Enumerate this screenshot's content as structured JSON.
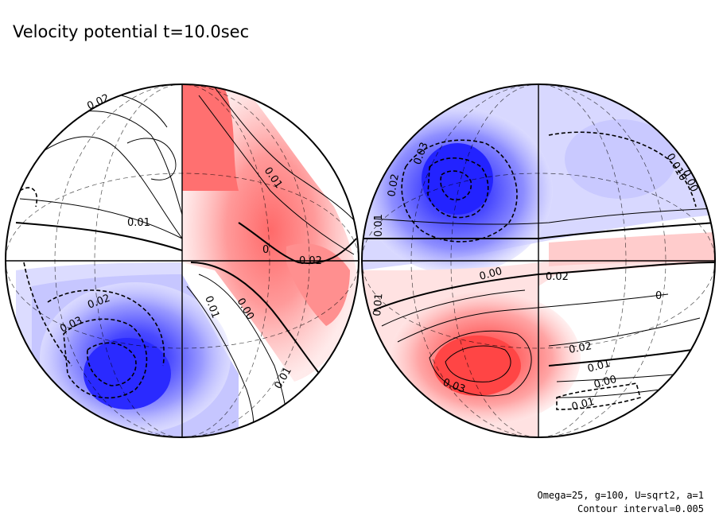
{
  "title": "Velocity potential t=10.0sec",
  "notes": {
    "params": "Omega=25, g=100, U=sqrt2, a=1",
    "interval": "Contour interval=0.005"
  },
  "colors": {
    "negative_max": "#1a1aff",
    "positive_max": "#ff3c3c",
    "contour": "#000000"
  },
  "chart_data": {
    "type": "heatmap",
    "projection": "orthographic, two hemispheres",
    "variable": "velocity potential",
    "time_sec": 10.0,
    "contour_interval": 0.005,
    "value_range": [
      -0.035,
      0.035
    ],
    "hemispheres": [
      {
        "name": "left",
        "contour_labels": [
          "0.02",
          "0.01",
          "0.01",
          "0",
          "0.02",
          "0.02",
          "0.03",
          "0.01",
          "0.00",
          "0.01"
        ],
        "features": [
          {
            "kind": "minimum",
            "approx_value": -0.035
          },
          {
            "kind": "maximum",
            "approx_value": 0.025
          }
        ]
      },
      {
        "name": "right",
        "contour_labels": [
          "0.03",
          "0.02",
          "0.01",
          "0.010",
          "0.00",
          "0.00",
          "0.02",
          "0.01",
          "0.02",
          "0.01",
          "0.00",
          "0.01",
          "0.03",
          "0"
        ],
        "features": [
          {
            "kind": "minimum",
            "approx_value": -0.035
          },
          {
            "kind": "maximum",
            "approx_value": 0.035
          }
        ]
      }
    ]
  }
}
